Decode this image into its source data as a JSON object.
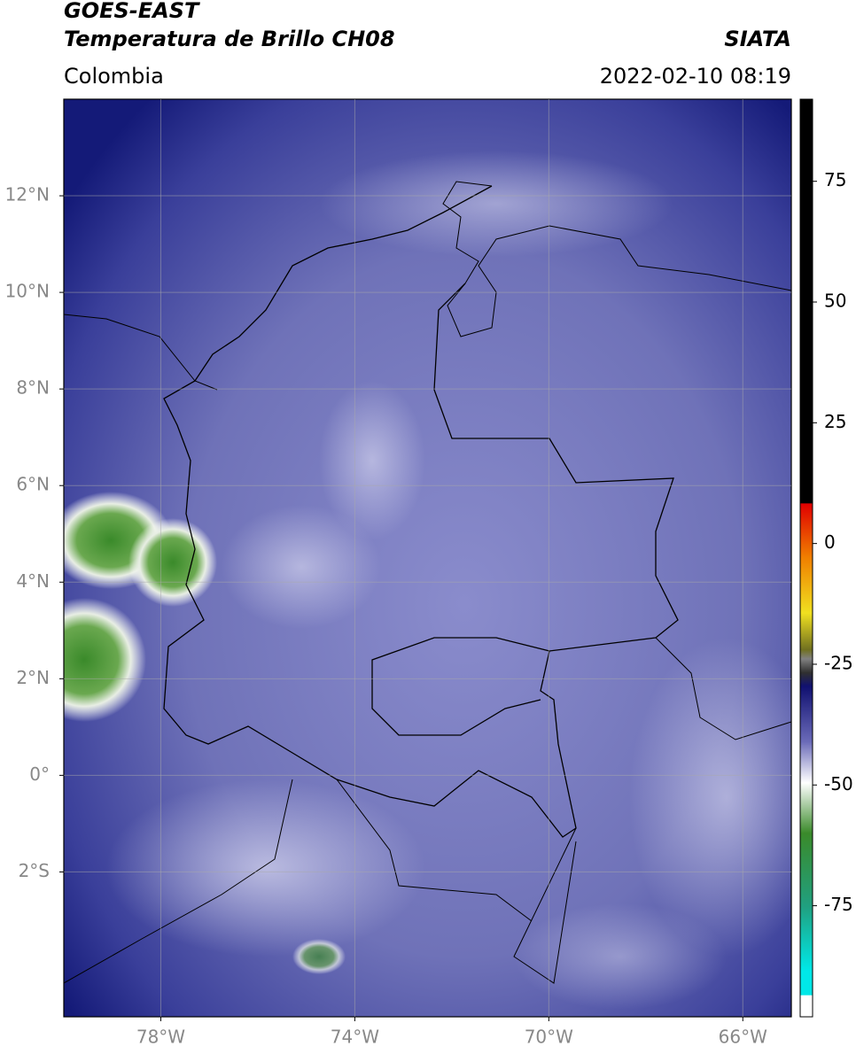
{
  "header": {
    "title": "GOES-EAST",
    "subtitle": "Temperatura de Brillo CH08",
    "source": "SIATA",
    "region": "Colombia",
    "timestamp": "2022-02-10 08:19"
  },
  "map": {
    "xlim": [
      -80,
      -65
    ],
    "ylim": [
      -5,
      14
    ],
    "xticks": [
      {
        "value": -78,
        "label": "78°W"
      },
      {
        "value": -74,
        "label": "74°W"
      },
      {
        "value": -70,
        "label": "70°W"
      },
      {
        "value": -66,
        "label": "66°W"
      }
    ],
    "yticks": [
      {
        "value": 12,
        "label": "12°N"
      },
      {
        "value": 10,
        "label": "10°N"
      },
      {
        "value": 8,
        "label": "8°N"
      },
      {
        "value": 6,
        "label": "6°N"
      },
      {
        "value": 4,
        "label": "4°N"
      },
      {
        "value": 2,
        "label": "2°N"
      },
      {
        "value": 0,
        "label": "0°"
      },
      {
        "value": -2,
        "label": "2°S"
      }
    ],
    "grid": true
  },
  "colorbar": {
    "lim": [
      -98,
      92
    ],
    "ticks": [
      75,
      50,
      25,
      0,
      -25,
      -50,
      -75
    ]
  }
}
